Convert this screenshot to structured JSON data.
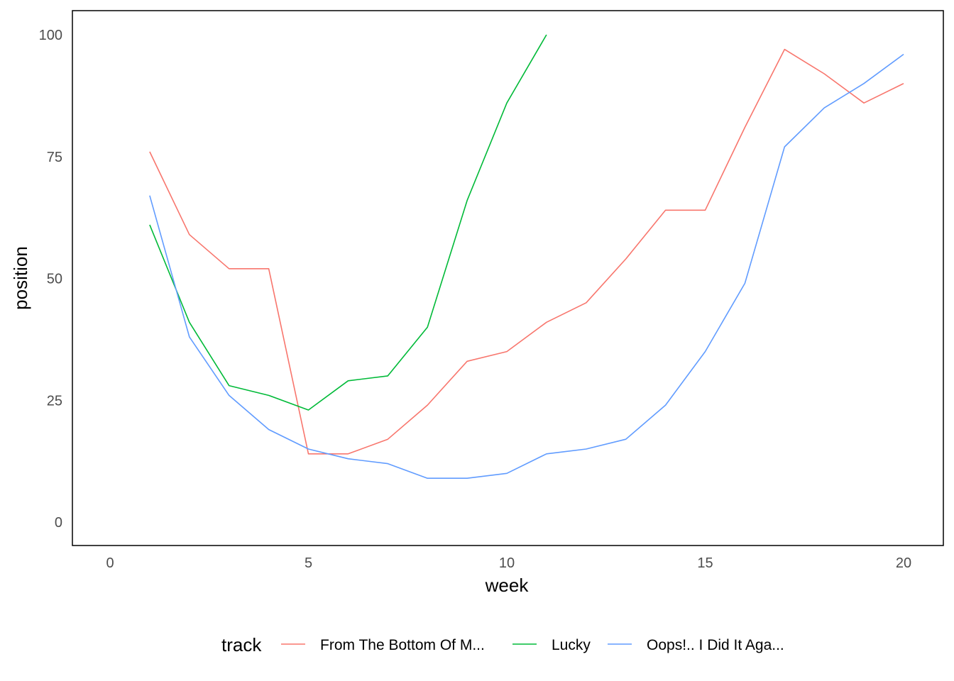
{
  "chart_data": {
    "type": "line",
    "title": "",
    "xlabel": "week",
    "ylabel": "position",
    "xlim": [
      0,
      20
    ],
    "ylim": [
      0,
      100
    ],
    "x_ticks": [
      "0",
      "5",
      "10",
      "15",
      "20"
    ],
    "y_ticks": [
      "0",
      "25",
      "50",
      "75",
      "100"
    ],
    "grid": false,
    "legend": {
      "title": "track",
      "position": "bottom"
    },
    "series": [
      {
        "name": "From The Bottom Of M...",
        "color": "#F8766D",
        "x": [
          1,
          2,
          3,
          4,
          5,
          6,
          7,
          8,
          9,
          10,
          11,
          12,
          13,
          14,
          15,
          16,
          17,
          18,
          19,
          20
        ],
        "values": [
          76,
          59,
          52,
          52,
          14,
          14,
          17,
          24,
          33,
          35,
          41,
          45,
          54,
          64,
          64,
          81,
          97,
          92,
          86,
          90
        ]
      },
      {
        "name": "Lucky",
        "color": "#00BA38",
        "x": [
          1,
          2,
          3,
          4,
          5,
          6,
          7,
          8,
          9,
          10,
          11
        ],
        "values": [
          61,
          41,
          28,
          26,
          23,
          29,
          30,
          40,
          66,
          86,
          100
        ]
      },
      {
        "name": "Oops!.. I Did It Aga...",
        "color": "#619CFF",
        "x": [
          1,
          2,
          3,
          4,
          5,
          6,
          7,
          8,
          9,
          10,
          11,
          12,
          13,
          14,
          15,
          16,
          17,
          18,
          19,
          20
        ],
        "values": [
          67,
          38,
          26,
          19,
          15,
          13,
          12,
          9,
          9,
          10,
          14,
          15,
          17,
          24,
          35,
          49,
          77,
          85,
          90,
          96
        ]
      }
    ]
  }
}
